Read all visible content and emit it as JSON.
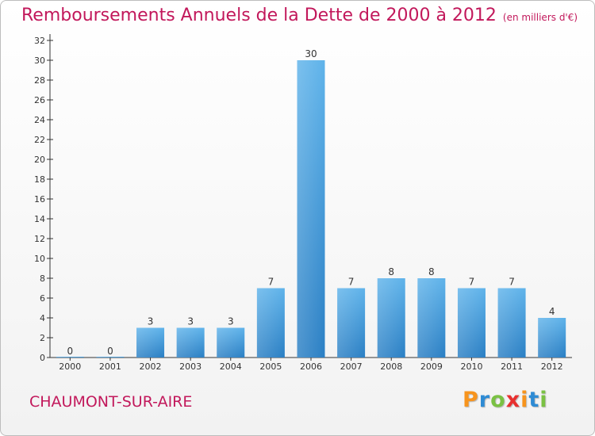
{
  "title": "Remboursements Annuels de la Dette de 2000 à 2012",
  "subtitle": "(en milliers d'€)",
  "location": "CHAUMONT-SUR-AIRE",
  "brand": "Proxiti",
  "colors": {
    "title": "#c2185b",
    "bar_light": "#5fb3ea",
    "bar_dark": "#2a7fc4"
  },
  "chart_data": {
    "type": "bar",
    "title": "Remboursements Annuels de la Dette de 2000 à 2012",
    "subtitle": "(en milliers d'€)",
    "categories": [
      "2000",
      "2001",
      "2002",
      "2003",
      "2004",
      "2005",
      "2006",
      "2007",
      "2008",
      "2009",
      "2010",
      "2011",
      "2012"
    ],
    "values": [
      0,
      0,
      3,
      3,
      3,
      7,
      30,
      7,
      8,
      8,
      7,
      7,
      4
    ],
    "xlabel": "",
    "ylabel": "",
    "ylim": [
      0,
      32
    ],
    "yticks": [
      0,
      2,
      4,
      6,
      8,
      10,
      12,
      14,
      16,
      18,
      20,
      22,
      24,
      26,
      28,
      30,
      32
    ],
    "grid": false,
    "legend": "none"
  }
}
